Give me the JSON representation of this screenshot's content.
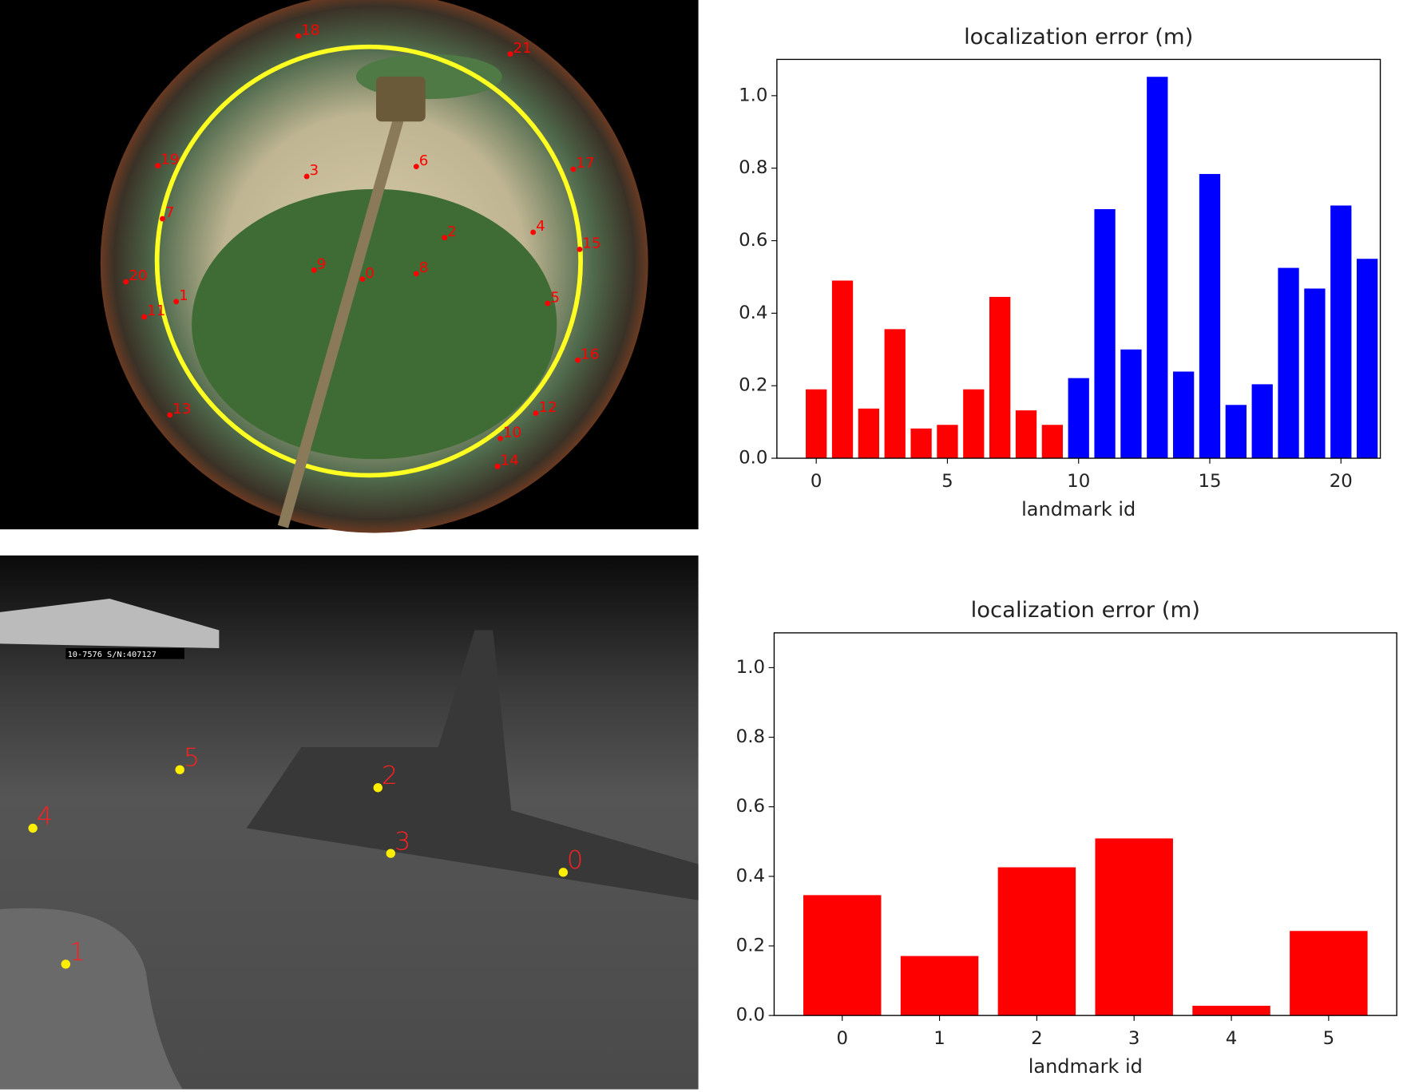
{
  "chart_data": [
    {
      "type": "bar",
      "title": "localization error (m)",
      "xlabel": "landmark id",
      "x": [
        0,
        1,
        2,
        3,
        4,
        5,
        6,
        7,
        8,
        9,
        10,
        11,
        12,
        13,
        14,
        15,
        16,
        17,
        18,
        19,
        20,
        21
      ],
      "values": [
        0.19,
        0.49,
        0.137,
        0.356,
        0.082,
        0.092,
        0.19,
        0.445,
        0.132,
        0.092,
        0.221,
        0.687,
        0.3,
        1.052,
        0.239,
        0.784,
        0.147,
        0.204,
        0.525,
        0.468,
        0.697,
        0.55
      ],
      "colors": [
        "#ff0000",
        "#ff0000",
        "#ff0000",
        "#ff0000",
        "#ff0000",
        "#ff0000",
        "#ff0000",
        "#ff0000",
        "#ff0000",
        "#ff0000",
        "#0000ff",
        "#0000ff",
        "#0000ff",
        "#0000ff",
        "#0000ff",
        "#0000ff",
        "#0000ff",
        "#0000ff",
        "#0000ff",
        "#0000ff",
        "#0000ff",
        "#0000ff"
      ],
      "xlim": [
        -1.5,
        21.5
      ],
      "xticks": [
        0,
        5,
        10,
        15,
        20
      ],
      "ylim": [
        0,
        1.1
      ],
      "yticks": [
        {
          "value": 0,
          "label": "0.0"
        },
        0.2,
        0.4,
        0.6,
        0.8,
        {
          "value": 1,
          "label": "1.0"
        }
      ]
    },
    {
      "type": "bar",
      "title": "localization error (m)",
      "xlabel": "landmark id",
      "x": [
        0,
        1,
        2,
        3,
        4,
        5
      ],
      "values": [
        0.346,
        0.171,
        0.426,
        0.509,
        0.028,
        0.243
      ],
      "color": "#ff0000",
      "xlim": [
        -0.7,
        5.7
      ],
      "xticks": [
        0,
        1,
        2,
        3,
        4,
        5
      ],
      "ylim": [
        0,
        1.1
      ],
      "yticks": [
        {
          "value": 0,
          "label": "0.0"
        },
        0.2,
        0.4,
        0.6,
        0.8,
        {
          "value": 1,
          "label": "1.0"
        }
      ]
    }
  ],
  "fisheye_labels": [
    "0",
    "1",
    "2",
    "3",
    "4",
    "5",
    "6",
    "7",
    "8",
    "9",
    "10",
    "11",
    "12",
    "13",
    "14",
    "15",
    "16",
    "17",
    "18",
    "19",
    "20",
    "21"
  ],
  "thermal_labels": [
    "0",
    "1",
    "2",
    "3",
    "4",
    "5"
  ],
  "thermal_overlay": "10-7576 S/N:407127"
}
